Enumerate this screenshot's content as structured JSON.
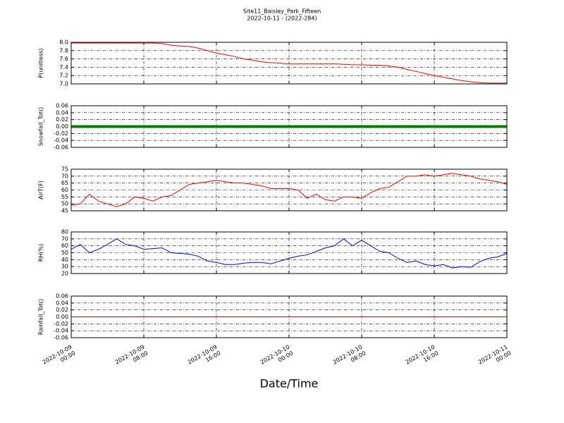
{
  "chart_data": {
    "type": "line",
    "title": "Site11_Baisley_Park_Fifteen",
    "subtitle": "2022-10-11 - (2022-284)",
    "xlabel": "Date/Time",
    "grid": true,
    "xlim": [
      "2022-10-09 00:00",
      "2022-10-11 00:00"
    ],
    "xticks": [
      "2022-10-09 00:00",
      "2022-10-09 08:00",
      "2022-10-09 16:00",
      "2022-10-10 00:00",
      "2022-10-10 08:00",
      "2022-10-10 16:00",
      "2022-10-11 00:00"
    ],
    "x": [
      "2022-10-09 00:00",
      "2022-10-09 01:00",
      "2022-10-09 02:00",
      "2022-10-09 03:00",
      "2022-10-09 04:00",
      "2022-10-09 05:00",
      "2022-10-09 06:00",
      "2022-10-09 07:00",
      "2022-10-09 08:00",
      "2022-10-09 09:00",
      "2022-10-09 10:00",
      "2022-10-09 11:00",
      "2022-10-09 12:00",
      "2022-10-09 13:00",
      "2022-10-09 14:00",
      "2022-10-09 15:00",
      "2022-10-09 16:00",
      "2022-10-09 17:00",
      "2022-10-09 18:00",
      "2022-10-09 19:00",
      "2022-10-09 20:00",
      "2022-10-09 21:00",
      "2022-10-09 22:00",
      "2022-10-09 23:00",
      "2022-10-10 00:00",
      "2022-10-10 01:00",
      "2022-10-10 02:00",
      "2022-10-10 03:00",
      "2022-10-10 04:00",
      "2022-10-10 05:00",
      "2022-10-10 06:00",
      "2022-10-10 07:00",
      "2022-10-10 08:00",
      "2022-10-10 09:00",
      "2022-10-10 10:00",
      "2022-10-10 11:00",
      "2022-10-10 12:00",
      "2022-10-10 13:00",
      "2022-10-10 14:00",
      "2022-10-10 15:00",
      "2022-10-10 16:00",
      "2022-10-10 17:00",
      "2022-10-10 18:00",
      "2022-10-10 19:00",
      "2022-10-10 20:00",
      "2022-10-10 21:00",
      "2022-10-10 22:00",
      "2022-10-10 23:00",
      "2022-10-11 00:00"
    ],
    "panels": [
      {
        "ylabel": "P(unitless)",
        "ylim": [
          7,
          8
        ],
        "yticks": [
          {
            "value": 7,
            "label": "7.0"
          },
          7.2,
          7.4,
          7.6,
          7.8,
          {
            "value": 8,
            "label": "8.0"
          }
        ],
        "series": [
          {
            "color": "#ff0000",
            "width": 1,
            "values": [
              7.98,
              7.98,
              7.98,
              7.98,
              7.98,
              7.98,
              7.98,
              7.98,
              7.98,
              7.98,
              7.97,
              7.93,
              7.91,
              7.9,
              7.86,
              7.8,
              7.74,
              7.7,
              7.66,
              7.6,
              7.57,
              7.53,
              7.51,
              7.5,
              7.48,
              7.48,
              7.48,
              7.48,
              7.48,
              7.48,
              7.47,
              7.46,
              7.46,
              7.45,
              7.45,
              7.43,
              7.4,
              7.35,
              7.3,
              7.25,
              7.2,
              7.16,
              7.12,
              7.08,
              7.05,
              7.03,
              7.02,
              7.02,
              7.02
            ]
          }
        ]
      },
      {
        "ylabel": "Snowfall_Tot()",
        "ylim": [
          -0.06,
          0.06
        ],
        "yticks": [
          -0.06,
          -0.04,
          -0.02,
          {
            "value": 0,
            "label": "0.00"
          },
          0.02,
          0.04,
          0.06
        ],
        "series": [
          {
            "color": "#008000",
            "width": 4,
            "values": [
              0,
              0,
              0,
              0,
              0,
              0,
              0,
              0,
              0,
              0,
              0,
              0,
              0,
              0,
              0,
              0,
              0,
              0,
              0,
              0,
              0,
              0,
              0,
              0,
              0,
              0,
              0,
              0,
              0,
              0,
              0,
              0,
              0,
              0,
              0,
              0,
              0,
              0,
              0,
              0,
              0,
              0,
              0,
              0,
              0,
              0,
              0,
              0,
              0
            ]
          }
        ]
      },
      {
        "ylabel": "AirT(F)",
        "ylim": [
          45,
          75
        ],
        "yticks": [
          45,
          50,
          55,
          60,
          65,
          70,
          75
        ],
        "series": [
          {
            "color": "#ff0000",
            "width": 1,
            "values": [
              49,
              50,
              57,
              52,
              50,
              48,
              50,
              55,
              54,
              52,
              55,
              56,
              60,
              64,
              65,
              66,
              67,
              66,
              65,
              65,
              64,
              63,
              61,
              61,
              61,
              60,
              54,
              57,
              53,
              52,
              55,
              55,
              54,
              58,
              61,
              62,
              66,
              70,
              70,
              71,
              70,
              71,
              72,
              71,
              70,
              68,
              67,
              66,
              64
            ]
          }
        ]
      },
      {
        "ylabel": "RH(%)",
        "ylim": [
          20,
          80
        ],
        "yticks": [
          20,
          30,
          40,
          50,
          60,
          70,
          80
        ],
        "series": [
          {
            "color": "#0000ff",
            "width": 1,
            "values": [
              55,
              62,
              50,
              55,
              62,
              70,
              62,
              60,
              55,
              56,
              57,
              50,
              49,
              48,
              45,
              38,
              36,
              33,
              33,
              35,
              36,
              36,
              34,
              38,
              42,
              45,
              47,
              52,
              57,
              60,
              70,
              60,
              68,
              60,
              52,
              50,
              42,
              36,
              38,
              33,
              31,
              33,
              28,
              30,
              29,
              37,
              42,
              44,
              49
            ]
          }
        ]
      },
      {
        "ylabel": "Rainfall_Tot()",
        "ylim": [
          -0.06,
          0.06
        ],
        "yticks": [
          -0.06,
          -0.04,
          -0.02,
          {
            "value": 0,
            "label": "0.00"
          },
          0.02,
          0.04,
          0.06
        ],
        "series": [
          {
            "color": "#ff0000",
            "width": 1,
            "values": [
              0,
              0,
              0,
              0,
              0,
              0,
              0,
              0,
              0,
              0,
              0,
              0,
              0,
              0,
              0,
              0,
              0,
              0,
              0,
              0,
              0,
              0,
              0,
              0,
              0,
              0,
              0,
              0,
              0,
              0,
              0,
              0,
              0,
              0,
              0,
              0,
              0,
              0,
              0,
              0,
              0,
              0,
              0,
              0,
              0,
              0,
              0,
              0,
              0
            ]
          }
        ]
      }
    ]
  }
}
